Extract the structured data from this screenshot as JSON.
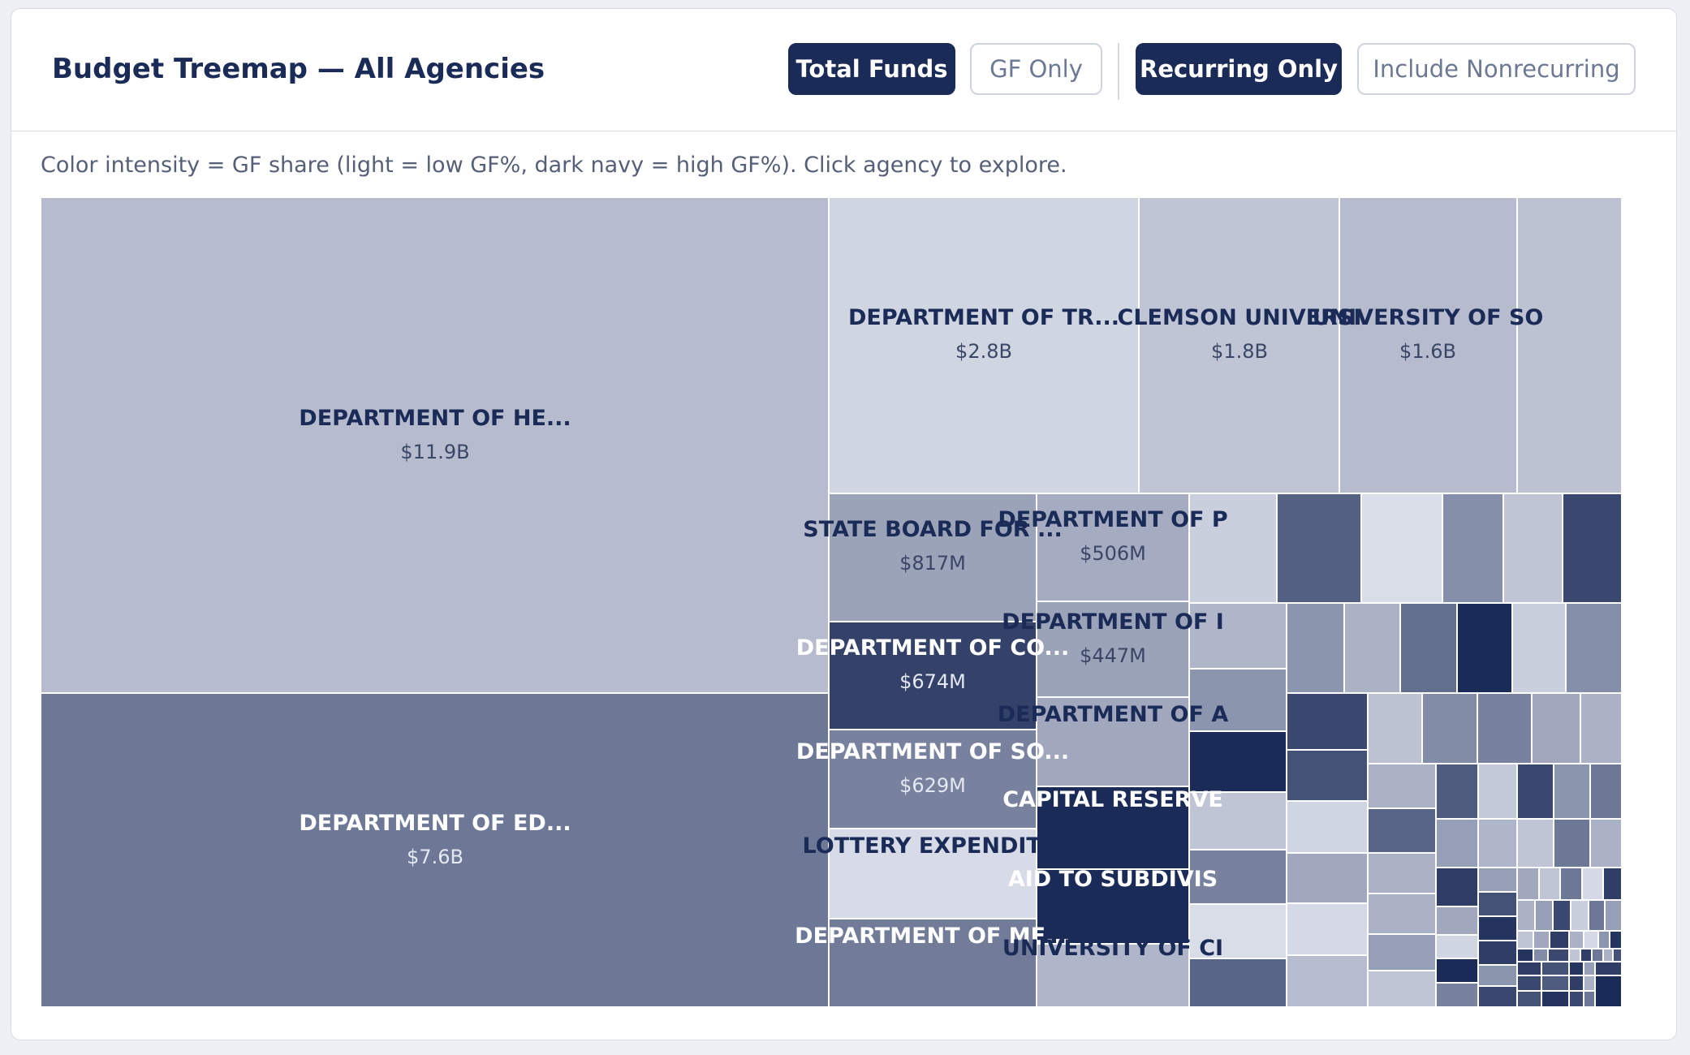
{
  "header": {
    "title": "Budget Treemap — All Agencies",
    "buttons": {
      "total_funds": "Total Funds",
      "gf_only": "GF Only",
      "recurring_only": "Recurring Only",
      "include_nonrecurring": "Include Nonrecurring"
    }
  },
  "note": "Color intensity = GF share (light = low GF%, dark navy = high GF%). Click agency to explore.",
  "colors": {
    "navy": "#1b2b57",
    "light": "#e9ecf5"
  },
  "chart_data": {
    "type": "treemap",
    "value_unit": "USD",
    "agencies": [
      {
        "name": "DEPARTMENT OF HE...",
        "label": "$11.9B",
        "gf_level": 0.25
      },
      {
        "name": "DEPARTMENT OF ED...",
        "label": "$7.6B",
        "gf_level": 0.6
      },
      {
        "name": "DEPARTMENT OF TR...",
        "label": "$2.8B",
        "gf_level": 0.12
      },
      {
        "name": "CLEMSON UNIVERSI",
        "label": "$1.8B",
        "gf_level": 0.2
      },
      {
        "name": "UNIVERSITY OF SO",
        "label": "$1.6B",
        "gf_level": 0.25
      },
      {
        "name": "",
        "label": "",
        "gf_level": 0.22
      },
      {
        "name": "STATE BOARD FOR ...",
        "label": "$817M",
        "gf_level": 0.38
      },
      {
        "name": "DEPARTMENT OF CO...",
        "label": "$674M",
        "gf_level": 0.88
      },
      {
        "name": "DEPARTMENT OF SO...",
        "label": "$629M",
        "gf_level": 0.55
      },
      {
        "name": "LOTTERY EXPENDIT...",
        "label": "",
        "gf_level": 0.09
      },
      {
        "name": "DEPARTMENT OF ME...",
        "label": "",
        "gf_level": 0.58
      },
      {
        "name": "DEPARTMENT OF P",
        "label": "$506M",
        "gf_level": 0.33
      },
      {
        "name": "DEPARTMENT OF I",
        "label": "$447M",
        "gf_level": 0.38
      },
      {
        "name": "DEPARTMENT OF A",
        "label": "",
        "gf_level": 0.35
      },
      {
        "name": "CAPITAL RESERVE",
        "label": "",
        "gf_level": 1.0
      },
      {
        "name": "AID TO SUBDIVIS",
        "label": "",
        "gf_level": 1.0
      },
      {
        "name": "UNIVERSITY OF CI",
        "label": "",
        "gf_level": 0.28
      }
    ]
  }
}
